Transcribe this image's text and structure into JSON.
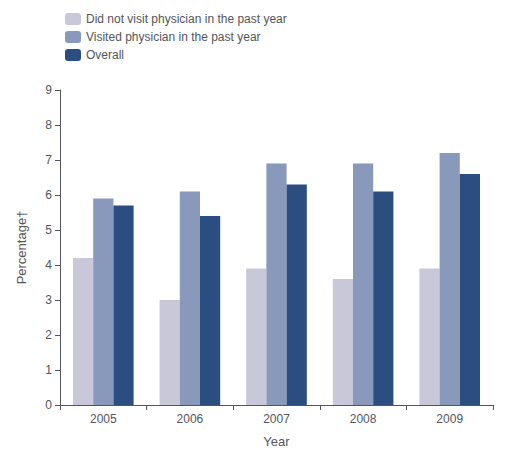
{
  "chart_data": {
    "type": "bar",
    "xlabel": "Year",
    "ylabel": "Percentage†",
    "categories": [
      "2005",
      "2006",
      "2007",
      "2008",
      "2009"
    ],
    "series": [
      {
        "name": "Did not visit physician in the past year",
        "color": "#c8c8d8",
        "values": [
          4.2,
          3.0,
          3.9,
          3.6,
          3.9
        ]
      },
      {
        "name": "Visited physician in the past year",
        "color": "#8899bb",
        "values": [
          5.9,
          6.1,
          6.9,
          6.9,
          7.2
        ]
      },
      {
        "name": "Overall",
        "color": "#2b4d80",
        "values": [
          5.7,
          5.4,
          6.3,
          6.1,
          6.6
        ]
      }
    ],
    "ylim": [
      0,
      9
    ],
    "yticks": [
      0,
      1,
      2,
      3,
      4,
      5,
      6,
      7,
      8,
      9
    ],
    "grid": false,
    "legend": "upper left"
  }
}
